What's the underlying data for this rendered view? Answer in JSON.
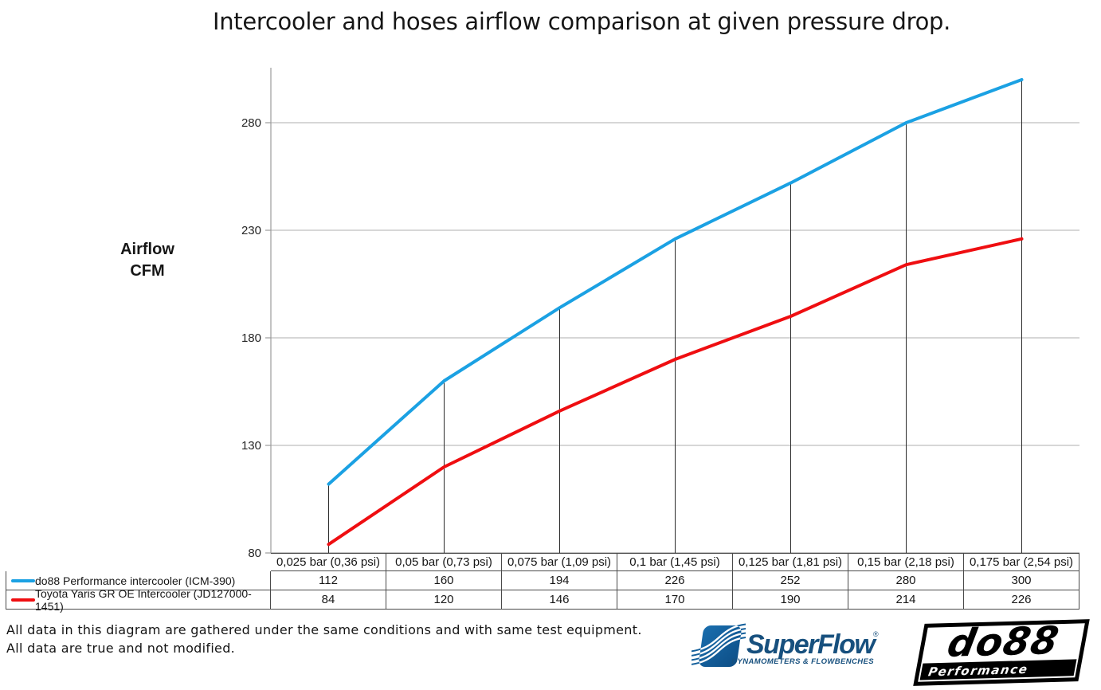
{
  "title": "Intercooler and hoses airflow comparison at given pressure drop.",
  "y_axis": {
    "label_lines": [
      "Airflow",
      "CFM"
    ]
  },
  "chart_data": {
    "type": "line",
    "title": "Intercooler and hoses airflow comparison at given pressure drop.",
    "categories": [
      "0,025 bar (0,36 psi)",
      "0,05 bar (0,73 psi)",
      "0,075 bar (1,09 psi)",
      "0,1 bar (1,45 psi)",
      "0,125 bar (1,81 psi)",
      "0,15 bar (2,18 psi)",
      "0,175 bar (2,54 psi)"
    ],
    "series": [
      {
        "name": "do88 Performance intercooler (ICM-390)",
        "color": "#1ba1e3",
        "values": [
          112,
          160,
          194,
          226,
          252,
          280,
          300
        ]
      },
      {
        "name": "Toyota Yaris GR OE Intercooler (JD127000-1451)",
        "color": "#ef0e11",
        "values": [
          84,
          120,
          146,
          170,
          190,
          214,
          226
        ]
      }
    ],
    "xlabel": "",
    "ylabel": "Airflow CFM",
    "yticks": [
      80,
      130,
      180,
      230,
      280
    ],
    "ylim": [
      80,
      305
    ],
    "grid": true,
    "gridline_color": "#bfbfbf",
    "axis_color": "#9b9b9b",
    "drop_line_color": "#2b2b2b",
    "legend_position": "table-left-column"
  },
  "footer": {
    "line1": "All data in this diagram are gathered under the same conditions and with same test equipment.",
    "line2": "All data are true and not modified."
  },
  "logos": {
    "superflow": {
      "name": "SuperFlow",
      "mark": "®",
      "tagline": "DYNAMOMETERS & FLOWBENCHES",
      "color": "#17507e"
    },
    "do88": {
      "name": "do88",
      "tagline": "Performance"
    }
  }
}
